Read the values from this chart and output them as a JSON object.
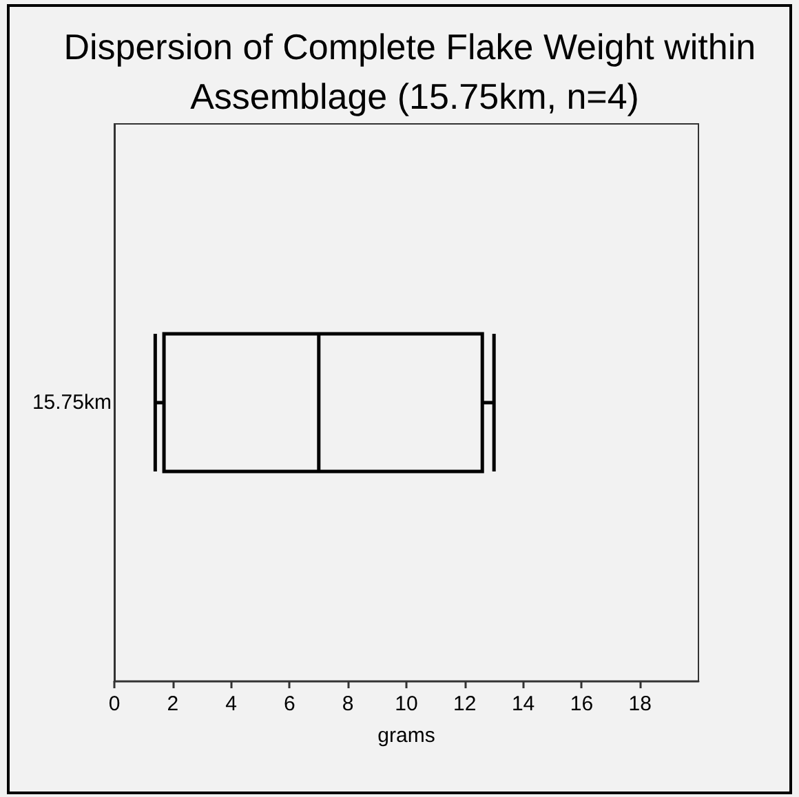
{
  "chart_data": {
    "type": "box",
    "title": "Dispersion of Complete Flake Weight within Assemblage (15.75km, n=4)",
    "xlabel": "grams",
    "orientation": "horizontal",
    "categories": [
      "15.75km"
    ],
    "color": "#000000",
    "boxes": [
      {
        "low": 1.4,
        "q1": 1.7,
        "median": 7.0,
        "q3": 12.6,
        "high": 13.0
      }
    ],
    "xlim": [
      0,
      20
    ],
    "xticks": [
      0,
      2,
      4,
      6,
      8,
      10,
      12,
      14,
      16,
      18
    ]
  }
}
